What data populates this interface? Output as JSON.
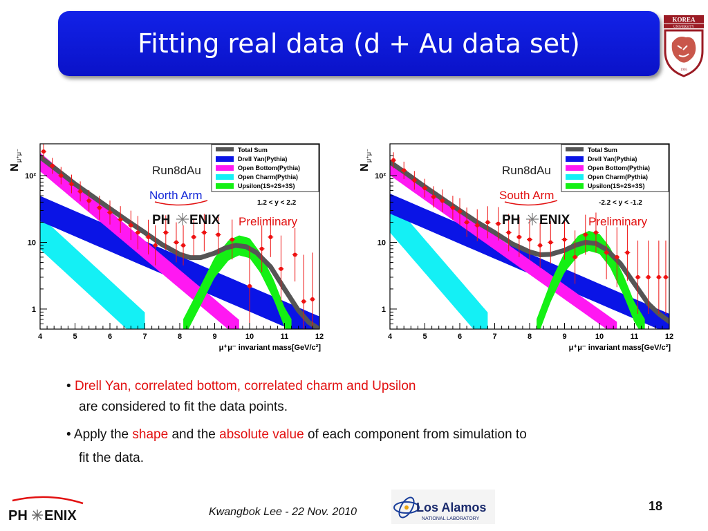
{
  "slide": {
    "title": "Fitting real data (d + Au data set)",
    "university_logo_text": [
      "KOREA",
      "UNIVERSITY",
      "1905"
    ],
    "bullet1": {
      "highlight": "Drell Yan, correlated bottom, correlated charm and Upsilon",
      "rest": "are considered to fit the data points."
    },
    "bullet2": {
      "p1": "Apply the ",
      "shape": "shape",
      "p2": " and the ",
      "absolute_value": "absolute value",
      "p3": " of each component from simulation to",
      "line2": "fit the data."
    },
    "footer": {
      "phenix_logo": "PHENIX",
      "author_date": "Kwangbok Lee - 22 Nov. 2010",
      "lanl_name": "Los Alamos",
      "lanl_sub": "NATIONAL LABORATORY",
      "page_number": "18"
    }
  },
  "chart_data": [
    {
      "type": "line",
      "panel": "left",
      "experiment_label": "Run8dAu",
      "arm": "North Arm",
      "rapidity": "1.2 < y < 2.2",
      "preliminary": "Preliminary",
      "phenix_label": [
        "PH",
        "ENIX"
      ],
      "ylabel": "N",
      "ylabel_sub": "μ⁺μ⁻",
      "xlabel": "μ⁺μ⁻ invariant mass[GeV/c²]",
      "xlim": [
        4,
        12
      ],
      "ylim": [
        0.5,
        300
      ],
      "yscale": "log",
      "xticks": [
        "4",
        "5",
        "6",
        "7",
        "8",
        "9",
        "10",
        "11",
        "12"
      ],
      "yticks": [
        {
          "v": 1,
          "label": "1"
        },
        {
          "v": 10,
          "label": "10"
        },
        {
          "v": 100,
          "label": "10²"
        }
      ],
      "legend_position": "top-right",
      "legend": [
        "Total Sum",
        "Drell Yan(Pythia)",
        "Open Bottom(Pythia)",
        "Open Charm(Pythia)",
        "Upsilon(1S+2S+3S)"
      ],
      "colors": {
        "total": "#555555",
        "dy": "#0a14e6",
        "bottom": "#ff18f2",
        "charm": "#14f0f5",
        "upsilon": "#14f014",
        "data": "#ee1111"
      },
      "series": [
        {
          "name": "Total Sum",
          "x": [
            4.0,
            4.5,
            5.0,
            5.5,
            6.0,
            6.5,
            7.0,
            7.5,
            8.0,
            8.3,
            8.6,
            9.0,
            9.3,
            9.6,
            9.9,
            10.2,
            10.6,
            11.0,
            11.4,
            11.7,
            12.0
          ],
          "y": [
            190,
            120,
            75,
            49,
            32,
            21,
            14,
            9.2,
            6.6,
            5.9,
            5.9,
            6.9,
            8.2,
            9.0,
            8.6,
            7.0,
            4.3,
            2.0,
            0.95,
            0.63,
            0.5
          ]
        },
        {
          "name": "Drell Yan(Pythia)",
          "x": [
            4.0,
            12.0
          ],
          "y": [
            32,
            0.5
          ],
          "width": 0.38
        },
        {
          "name": "Open Bottom(Pythia)",
          "x": [
            4.0,
            9.7
          ],
          "y": [
            160,
            0.5
          ],
          "width": 0.28
        },
        {
          "name": "Open Charm(Pythia)",
          "x": [
            4.0,
            7.0
          ],
          "y": [
            14,
            0.5
          ],
          "width": 0.5
        },
        {
          "name": "Upsilon(1S+2S+3S)",
          "x": [
            8.1,
            8.6,
            9.0,
            9.4,
            9.7,
            10.0,
            10.3,
            10.7,
            11.0,
            11.2
          ],
          "y": [
            0.5,
            1.6,
            4.2,
            7.6,
            9.0,
            8.2,
            5.0,
            1.9,
            0.75,
            0.5
          ],
          "width": 0.3
        },
        {
          "name": "data",
          "x": [
            4.1,
            4.35,
            4.6,
            4.9,
            5.15,
            5.4,
            5.7,
            6.0,
            6.3,
            6.6,
            6.8,
            7.1,
            7.3,
            7.6,
            7.9,
            8.1,
            8.4,
            8.7,
            9.1,
            9.5,
            10.0,
            10.35,
            10.6,
            10.9,
            11.3,
            11.55,
            11.8
          ],
          "y": [
            230,
            140,
            100,
            75,
            58,
            42,
            33,
            28,
            22,
            18,
            14,
            12,
            9,
            14,
            10,
            9,
            12,
            14,
            13,
            11,
            2.2,
            8,
            12,
            4,
            6.5,
            1.3,
            1.4
          ],
          "err": [
            0.12,
            0.12,
            0.13,
            0.14,
            0.15,
            0.16,
            0.18,
            0.18,
            0.2,
            0.22,
            0.25,
            0.26,
            0.3,
            0.26,
            0.3,
            0.3,
            0.28,
            0.28,
            0.28,
            0.3,
            0.6,
            0.35,
            0.3,
            0.5,
            0.4,
            0.7,
            0.7
          ]
        }
      ]
    },
    {
      "type": "line",
      "panel": "right",
      "experiment_label": "Run8dAu",
      "arm": "South Arm",
      "rapidity": "-2.2 < y < -1.2",
      "preliminary": "Preliminary",
      "phenix_label": [
        "PH",
        "ENIX"
      ],
      "ylabel": "N",
      "ylabel_sub": "μ⁺μ⁻",
      "xlabel": "μ⁺μ⁻ invariant mass[GeV/c²]",
      "xlim": [
        4,
        12
      ],
      "ylim": [
        0.5,
        300
      ],
      "yscale": "log",
      "xticks": [
        "4",
        "5",
        "6",
        "7",
        "8",
        "9",
        "10",
        "11",
        "12"
      ],
      "yticks": [
        {
          "v": 1,
          "label": "1"
        },
        {
          "v": 10,
          "label": "10"
        },
        {
          "v": 100,
          "label": "10²"
        }
      ],
      "legend_position": "top-right",
      "legend": [
        "Total Sum",
        "Drell Yan(Pythia)",
        "Open Bottom(Pythia)",
        "Open Charm(Pythia)",
        "Upsilon(1S+2S+3S)"
      ],
      "colors": {
        "total": "#555555",
        "dy": "#0a14e6",
        "bottom": "#ff18f2",
        "charm": "#14f0f5",
        "upsilon": "#14f014",
        "data": "#ee1111"
      },
      "series": [
        {
          "name": "Total Sum",
          "x": [
            4.0,
            4.5,
            5.0,
            5.5,
            6.0,
            6.5,
            7.0,
            7.5,
            8.0,
            8.3,
            8.6,
            9.0,
            9.3,
            9.6,
            9.9,
            10.2,
            10.6,
            11.0,
            11.4,
            11.7,
            12.0
          ],
          "y": [
            160,
            105,
            68,
            45,
            30,
            20,
            14,
            9.5,
            7.2,
            6.5,
            6.6,
            7.6,
            9.0,
            10.0,
            9.6,
            7.8,
            4.8,
            2.4,
            1.2,
            0.85,
            0.65
          ]
        },
        {
          "name": "Drell Yan(Pythia)",
          "x": [
            4.0,
            12.0
          ],
          "y": [
            38,
            0.6
          ],
          "width": 0.3
        },
        {
          "name": "Open Bottom(Pythia)",
          "x": [
            4.0,
            10.5
          ],
          "y": [
            130,
            0.5
          ],
          "width": 0.22
        },
        {
          "name": "Open Charm(Pythia)",
          "x": [
            4.0,
            6.8
          ],
          "y": [
            25,
            0.5
          ],
          "width": 0.5
        },
        {
          "name": "Upsilon(1S+2S+3S)",
          "x": [
            8.2,
            8.6,
            9.0,
            9.4,
            9.7,
            10.0,
            10.3,
            10.7,
            11.0,
            11.3
          ],
          "y": [
            0.5,
            1.8,
            5.0,
            9.0,
            10.5,
            9.5,
            6.0,
            2.2,
            0.9,
            0.5
          ],
          "width": 0.3
        },
        {
          "name": "data",
          "x": [
            4.1,
            4.4,
            4.7,
            5.0,
            5.25,
            5.5,
            5.8,
            6.0,
            6.2,
            6.5,
            6.8,
            7.1,
            7.4,
            7.7,
            8.0,
            8.3,
            8.6,
            9.0,
            9.3,
            9.6,
            9.9,
            10.2,
            10.5,
            10.8,
            11.1,
            11.4,
            11.7,
            11.9
          ],
          "y": [
            170,
            120,
            85,
            65,
            48,
            42,
            33,
            29,
            20,
            18,
            20,
            19,
            14,
            12,
            11,
            9,
            10,
            11,
            6,
            13,
            14,
            7,
            6,
            7,
            3,
            3,
            3,
            3
          ],
          "err": [
            0.12,
            0.13,
            0.14,
            0.14,
            0.16,
            0.17,
            0.18,
            0.2,
            0.22,
            0.24,
            0.24,
            0.25,
            0.28,
            0.3,
            0.3,
            0.34,
            0.32,
            0.3,
            0.4,
            0.3,
            0.3,
            0.4,
            0.45,
            0.42,
            0.55,
            0.55,
            0.55,
            0.55
          ]
        }
      ]
    }
  ]
}
